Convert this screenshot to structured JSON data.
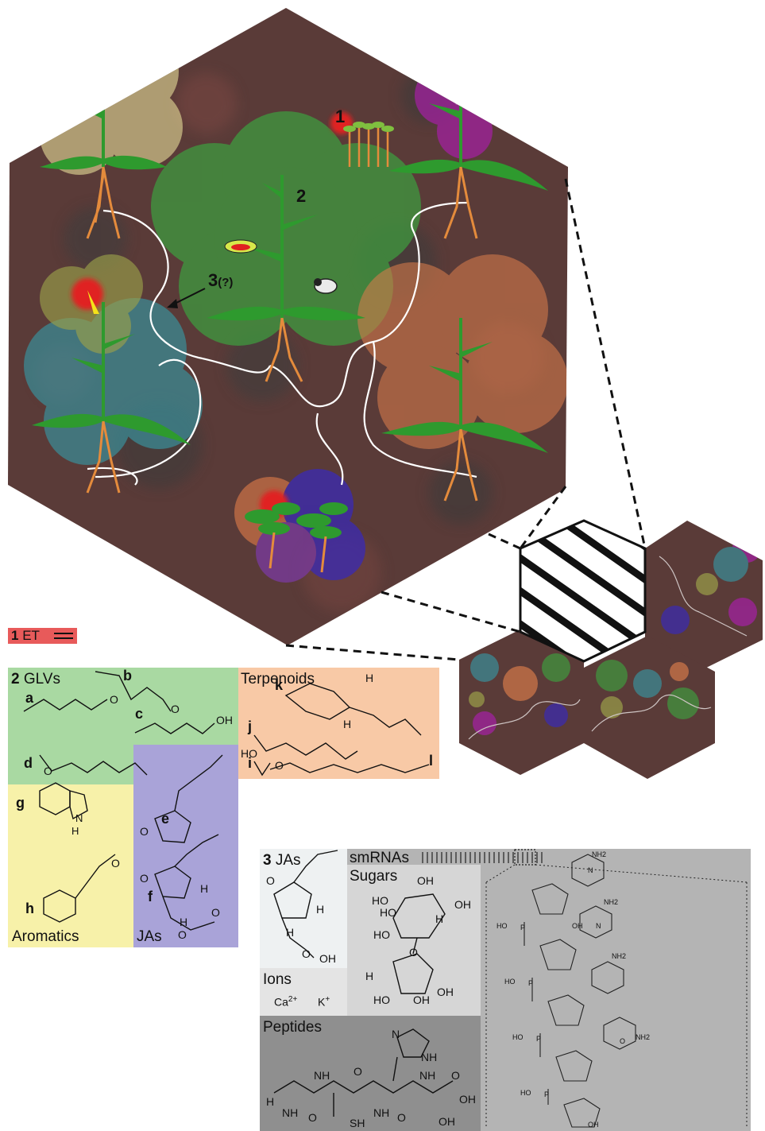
{
  "scene_labels": {
    "n1": "1",
    "n2": "2",
    "n3": "3",
    "n3_suffix": "(?)"
  },
  "legend_et": {
    "num": "1",
    "text": "ET"
  },
  "panel_glv": {
    "num": "2",
    "title": "GLVs",
    "letters": [
      "a",
      "b",
      "c",
      "d"
    ],
    "oh": "OH",
    "o": "O"
  },
  "panel_terpenoids": {
    "title": "Terpenoids",
    "letters": [
      "k",
      "j",
      "i",
      "l"
    ],
    "h": "H",
    "ho": "HO",
    "o": "O"
  },
  "panel_aromatics": {
    "title": "Aromatics",
    "letters": [
      "g",
      "h"
    ],
    "nh": "N",
    "hh": "H",
    "o": "O"
  },
  "panel_jas_left": {
    "title": "JAs",
    "letters": [
      "e",
      "f"
    ],
    "o": "O",
    "h": "H"
  },
  "panel_jas": {
    "num": "3",
    "title": "JAs",
    "o": "O",
    "oh": "OH",
    "h": "H"
  },
  "panel_smrnas": {
    "title": "smRNAs"
  },
  "panel_sugars": {
    "title": "Sugars",
    "oh": "OH",
    "ho": "HO",
    "o": "O",
    "h": "H"
  },
  "panel_ions": {
    "title": "Ions",
    "ca": "Ca",
    "ca_charge": "2+",
    "k": "K",
    "k_charge": "+"
  },
  "panel_peptides": {
    "title": "Peptides",
    "nh": "NH",
    "n": "N",
    "h": "H",
    "o": "O",
    "oh": "OH",
    "sh": "SH"
  },
  "rna_labels": {
    "nh2": "NH2",
    "n": "N",
    "o": "O",
    "ho": "HO",
    "oh": "OH",
    "p": "P"
  },
  "colors": {
    "soil": "#5a3b38",
    "leaf": "#2e9a2e",
    "root": "#e48b3c",
    "glv_bg": "#a9d9a2",
    "terp_bg": "#f8c9a6",
    "arom_bg": "#f7f1a9",
    "jas_bg": "#a9a3d8",
    "jas3_bg": "#eef1f2",
    "sugar_bg": "#d6d6d6",
    "ions_bg": "#e4e4e4",
    "pep_bg": "#8f8f8f",
    "smrna_bg": "#b4b4b4"
  }
}
